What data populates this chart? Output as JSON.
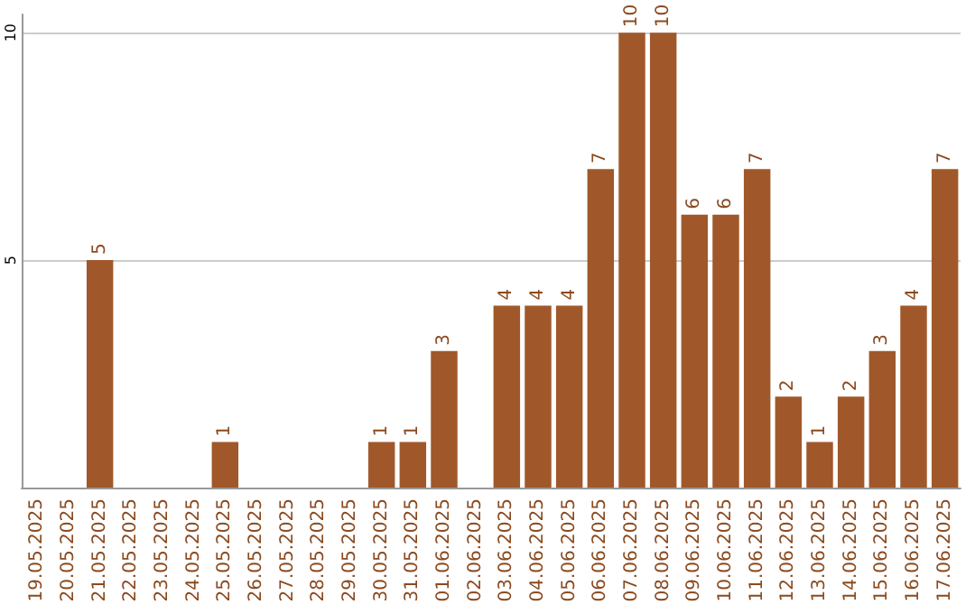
{
  "chart_data": {
    "type": "bar",
    "categories": [
      "19.05.2025",
      "20.05.2025",
      "21.05.2025",
      "22.05.2025",
      "23.05.2025",
      "24.05.2025",
      "25.05.2025",
      "26.05.2025",
      "27.05.2025",
      "28.05.2025",
      "29.05.2025",
      "30.05.2025",
      "31.05.2025",
      "01.06.2025",
      "02.06.2025",
      "03.06.2025",
      "04.06.2025",
      "05.06.2025",
      "06.06.2025",
      "07.06.2025",
      "08.06.2025",
      "09.06.2025",
      "10.06.2025",
      "11.06.2025",
      "12.06.2025",
      "13.06.2025",
      "14.06.2025",
      "15.06.2025",
      "16.06.2025",
      "17.06.2025"
    ],
    "values": [
      0,
      0,
      5,
      0,
      0,
      0,
      1,
      0,
      0,
      0,
      0,
      1,
      1,
      3,
      0,
      4,
      4,
      4,
      7,
      10,
      10,
      6,
      6,
      7,
      2,
      1,
      2,
      3,
      4,
      7
    ],
    "value_labels": [
      null,
      null,
      "5",
      null,
      null,
      null,
      "1",
      null,
      null,
      null,
      null,
      "1",
      "1",
      "3",
      null,
      "4",
      "4",
      "4",
      "7",
      "10",
      "10",
      "6",
      "6",
      "7",
      "2",
      "1",
      "2",
      "3",
      "4",
      "7"
    ],
    "color": "#a0582a",
    "ylim": [
      0,
      10.4
    ],
    "yticks": [
      5,
      10
    ],
    "grid": "y"
  }
}
